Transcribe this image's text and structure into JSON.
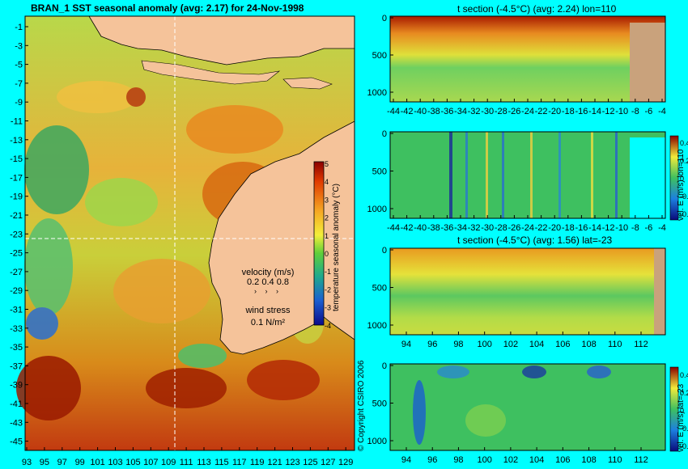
{
  "main_map": {
    "title": "BRAN_1 SST seasonal anomaly (avg: 2.17) for 24-Nov-1998",
    "y_ticks": [
      "-1",
      "-3",
      "-5",
      "-7",
      "-9",
      "-11",
      "-13",
      "-15",
      "-17",
      "-19",
      "-21",
      "-23",
      "-25",
      "-27",
      "-29",
      "-31",
      "-33",
      "-35",
      "-37",
      "-39",
      "-41",
      "-43",
      "-45"
    ],
    "x_ticks": [
      "93",
      "95",
      "97",
      "99",
      "101",
      "103",
      "105",
      "107",
      "109",
      "111",
      "113",
      "115",
      "117",
      "119",
      "121",
      "123",
      "125",
      "127",
      "129"
    ],
    "colorbar": {
      "label": "temperature seasonal anomaly (°C)",
      "ticks": [
        "5",
        "4",
        "3",
        "2",
        "1",
        "0",
        "-1",
        "-2",
        "-3",
        "-4"
      ]
    },
    "velocity_legend": {
      "title": "velocity (m/s)",
      "values": "0.2 0.4 0.8"
    },
    "wind_legend": {
      "title": "wind stress",
      "value": "0.1 N/m²"
    },
    "colors": {
      "land": "#f5c39a",
      "ocean_warm": "#d22a00",
      "ocean_cool": "#2e9a5a",
      "vector": "#ff00ff",
      "guide": "#ffffff"
    }
  },
  "panels": [
    {
      "title": "t section (-4.5°C) (avg: 2.24) lon=110",
      "y_ticks": [
        "0",
        "500",
        "1000"
      ],
      "x_ticks": [
        "-44",
        "-42",
        "-40",
        "-38",
        "-36",
        "-34",
        "-32",
        "-30",
        "-28",
        "-26",
        "-24",
        "-22",
        "-20",
        "-18",
        "-16",
        "-14",
        "-12",
        "-10",
        "-8",
        "-6",
        "-4"
      ],
      "colorbar_label": "",
      "colorbar_ticks": []
    },
    {
      "title": "",
      "y_ticks": [
        "0",
        "500",
        "1000"
      ],
      "x_ticks": [
        "-44",
        "-42",
        "-40",
        "-38",
        "-36",
        "-34",
        "-32",
        "-30",
        "-28",
        "-26",
        "-24",
        "-22",
        "-20",
        "-18",
        "-16",
        "-14",
        "-12",
        "-10",
        "-8",
        "-6",
        "-4"
      ],
      "colorbar_label": "vel. E (m/s) lon=110",
      "colorbar_ticks": [
        "0.4",
        "0.2",
        "0",
        "-0.2",
        "-0.4"
      ]
    },
    {
      "title": "t section (-4.5°C) (avg: 1.56) lat=-23",
      "y_ticks": [
        "0",
        "500",
        "1000"
      ],
      "x_ticks": [
        "94",
        "96",
        "98",
        "100",
        "102",
        "104",
        "106",
        "108",
        "110",
        "112"
      ],
      "colorbar_label": "",
      "colorbar_ticks": []
    },
    {
      "title": "",
      "y_ticks": [
        "0",
        "500",
        "1000"
      ],
      "x_ticks": [
        "94",
        "96",
        "98",
        "100",
        "102",
        "104",
        "106",
        "108",
        "110",
        "112"
      ],
      "colorbar_label": "vel. E (m/s) lat=-23",
      "colorbar_ticks": [
        "0.4",
        "0.2",
        "0",
        "-0.2",
        "-0.4"
      ]
    }
  ],
  "copyright": "© Copyright CSIRO 2006",
  "chart_data": [
    {
      "type": "heatmap",
      "title": "BRAN_1 SST seasonal anomaly (avg: 2.17) for 24-Nov-1998",
      "xlabel": "",
      "ylabel": "",
      "xlim": [
        93,
        130
      ],
      "ylim": [
        -45,
        0
      ],
      "colorbar_range": [
        -4,
        5
      ],
      "average": 2.17,
      "date": "24-Nov-1998"
    },
    {
      "type": "heatmap",
      "title": "t section (-4.5°C) (avg: 2.24) lon=110",
      "xlim": [
        -45,
        -3
      ],
      "ylim": [
        1050,
        0
      ],
      "average": 2.24,
      "section": "lon=110"
    },
    {
      "type": "heatmap",
      "title": "",
      "colorbar_label": "vel. E (m/s) lon=110",
      "xlim": [
        -45,
        -3
      ],
      "ylim": [
        1050,
        0
      ],
      "colorbar_range": [
        -0.4,
        0.4
      ]
    },
    {
      "type": "heatmap",
      "title": "t section (-4.5°C) (avg: 1.56) lat=-23",
      "xlim": [
        93,
        114
      ],
      "ylim": [
        1050,
        0
      ],
      "average": 1.56,
      "section": "lat=-23"
    },
    {
      "type": "heatmap",
      "title": "",
      "colorbar_label": "vel. E (m/s) lat=-23",
      "xlim": [
        93,
        114
      ],
      "ylim": [
        1050,
        0
      ],
      "colorbar_range": [
        -0.4,
        0.4
      ]
    }
  ]
}
